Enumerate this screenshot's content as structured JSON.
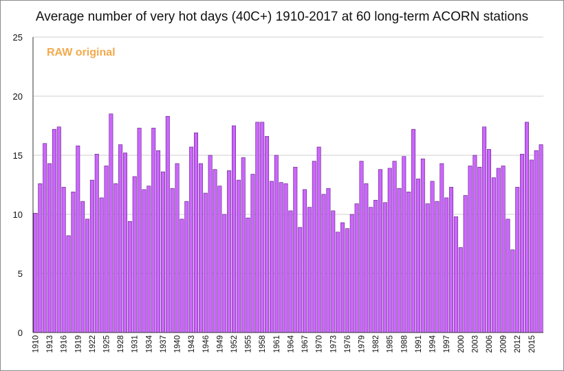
{
  "chart_data": {
    "type": "bar",
    "title": "Average number of very hot days (40C+) 1910-2017 at 60 long-term ACORN stations",
    "xlabel": "",
    "ylabel": "",
    "ylim": [
      0,
      25
    ],
    "yticks": [
      0,
      5,
      10,
      15,
      20,
      25
    ],
    "grid": "horizontal",
    "annotation": "RAW original",
    "bar_color": "#cc66ff",
    "bar_stroke": "#5a1a7a",
    "annotation_color": "#f4a94b",
    "x_tick_labels": [
      "1910",
      "1913",
      "1916",
      "1919",
      "1922",
      "1925",
      "1928",
      "1931",
      "1934",
      "1937",
      "1940",
      "1943",
      "1946",
      "1949",
      "1952",
      "1955",
      "1958",
      "1961",
      "1964",
      "1967",
      "1970",
      "1973",
      "1976",
      "1979",
      "1982",
      "1985",
      "1988",
      "1991",
      "1994",
      "1997",
      "2000",
      "2003",
      "2006",
      "2009",
      "2012",
      "2015"
    ],
    "categories": [
      1910,
      1911,
      1912,
      1913,
      1914,
      1915,
      1916,
      1917,
      1918,
      1919,
      1920,
      1921,
      1922,
      1923,
      1924,
      1925,
      1926,
      1927,
      1928,
      1929,
      1930,
      1931,
      1932,
      1933,
      1934,
      1935,
      1936,
      1937,
      1938,
      1939,
      1940,
      1941,
      1942,
      1943,
      1944,
      1945,
      1946,
      1947,
      1948,
      1949,
      1950,
      1951,
      1952,
      1953,
      1954,
      1955,
      1956,
      1957,
      1958,
      1959,
      1960,
      1961,
      1962,
      1963,
      1964,
      1965,
      1966,
      1967,
      1968,
      1969,
      1970,
      1971,
      1972,
      1973,
      1974,
      1975,
      1976,
      1977,
      1978,
      1979,
      1980,
      1981,
      1982,
      1983,
      1984,
      1985,
      1986,
      1987,
      1988,
      1989,
      1990,
      1991,
      1992,
      1993,
      1994,
      1995,
      1996,
      1997,
      1998,
      1999,
      2000,
      2001,
      2002,
      2003,
      2004,
      2005,
      2006,
      2007,
      2008,
      2009,
      2010,
      2011,
      2012,
      2013,
      2014,
      2015,
      2016,
      2017
    ],
    "values": [
      10.1,
      12.6,
      16.0,
      14.3,
      17.2,
      17.4,
      12.3,
      8.2,
      11.9,
      15.8,
      11.1,
      9.6,
      12.9,
      15.1,
      11.4,
      14.1,
      18.5,
      12.6,
      15.9,
      15.2,
      9.4,
      13.2,
      17.3,
      12.1,
      12.4,
      17.3,
      15.4,
      13.6,
      18.3,
      12.2,
      14.3,
      9.6,
      11.1,
      15.7,
      16.9,
      14.3,
      11.8,
      15.0,
      13.8,
      12.4,
      10.0,
      13.7,
      17.5,
      12.9,
      14.8,
      9.7,
      13.4,
      17.8,
      17.8,
      16.6,
      12.8,
      15.0,
      12.7,
      12.6,
      10.3,
      14.0,
      8.9,
      12.1,
      10.6,
      14.5,
      15.7,
      11.7,
      12.2,
      10.3,
      8.5,
      9.3,
      8.8,
      10.0,
      10.9,
      14.5,
      12.6,
      10.6,
      11.2,
      13.8,
      11.0,
      13.9,
      14.5,
      12.2,
      14.9,
      11.9,
      17.2,
      13.0,
      14.7,
      10.9,
      12.8,
      11.1,
      14.3,
      11.4,
      12.3,
      9.8,
      7.2,
      11.6,
      14.1,
      15.0,
      14.0,
      17.4,
      15.5,
      13.1,
      13.9,
      14.1,
      9.6,
      7.0,
      12.3,
      15.1,
      17.8,
      14.6,
      15.4,
      15.9
    ]
  }
}
